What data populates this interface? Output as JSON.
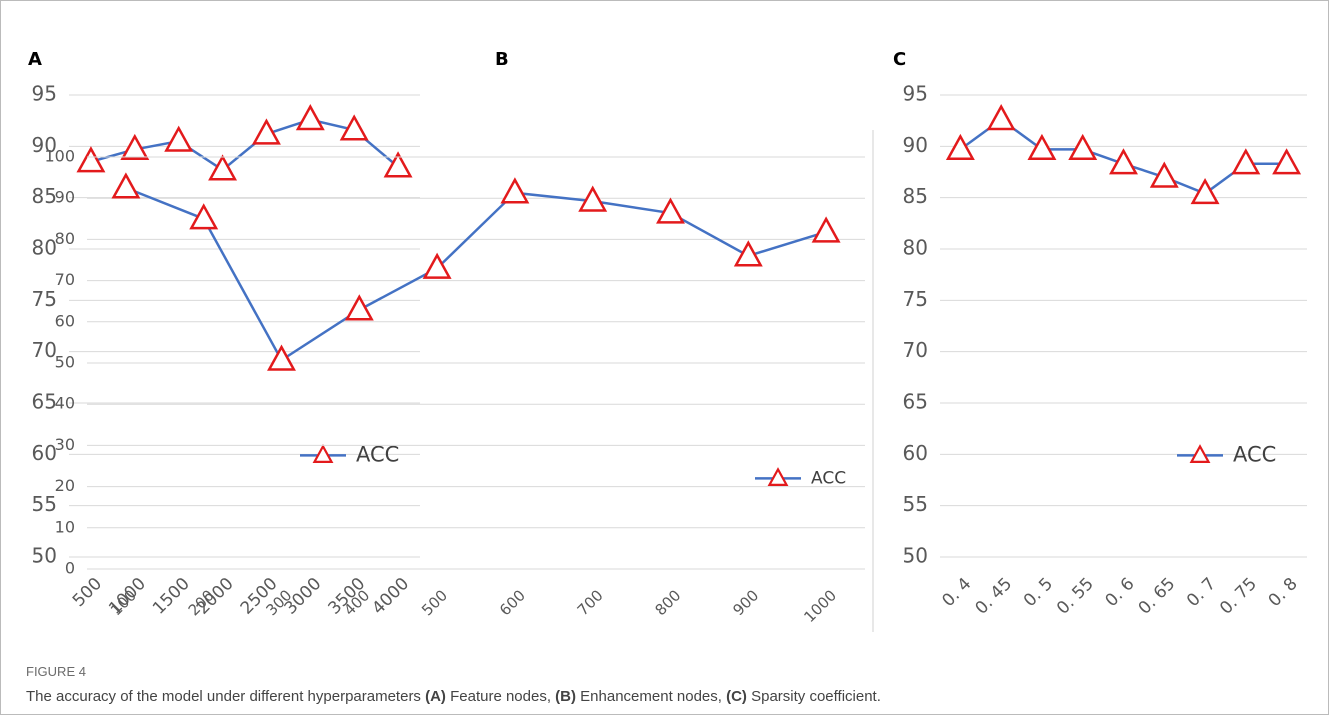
{
  "chart_data": [
    {
      "type": "line",
      "panel": "A",
      "categories": [
        "500",
        "1000",
        "1500",
        "2000",
        "2500",
        "3000",
        "3500",
        "4000"
      ],
      "series": [
        {
          "name": "ACC",
          "color": "#4472c4",
          "marker_color": "#e31a1c",
          "values": [
            88.5,
            89.7,
            90.5,
            87.7,
            91.2,
            92.6,
            91.6,
            88.0
          ]
        }
      ],
      "ylim": [
        50,
        95
      ],
      "yticks": [
        50,
        55,
        60,
        65,
        70,
        75,
        80,
        85,
        90,
        95
      ],
      "grid": true,
      "legend": "lower right"
    },
    {
      "type": "line",
      "panel": "B",
      "categories": [
        "100",
        "200",
        "300",
        "400",
        "500",
        "600",
        "700",
        "800",
        "900",
        "1000"
      ],
      "series": [
        {
          "name": "ACC",
          "color": "#4472c4",
          "marker_color": "#e31a1c",
          "values": [
            92.5,
            85.0,
            50.7,
            62.9,
            73.0,
            91.3,
            89.3,
            86.4,
            76.0,
            81.8
          ]
        }
      ],
      "ylim": [
        0,
        100
      ],
      "yticks": [
        0,
        10,
        20,
        30,
        40,
        50,
        60,
        70,
        80,
        90,
        100
      ],
      "grid": true,
      "legend": "lower right"
    },
    {
      "type": "line",
      "panel": "C",
      "categories": [
        "0. 4",
        "0. 45",
        "0. 5",
        "0. 55",
        "0. 6",
        "0. 65",
        "0. 7",
        "0. 75",
        "0. 8"
      ],
      "series": [
        {
          "name": "ACC",
          "color": "#4472c4",
          "marker_color": "#e31a1c",
          "values": [
            89.7,
            92.6,
            89.7,
            89.7,
            88.3,
            87.0,
            85.4,
            88.3,
            88.3
          ]
        }
      ],
      "ylim": [
        50,
        95
      ],
      "yticks": [
        50,
        55,
        60,
        65,
        70,
        75,
        80,
        85,
        90,
        95
      ],
      "grid": true,
      "legend": "lower right"
    }
  ],
  "figure": {
    "label": "FIGURE 4",
    "caption": [
      "The accuracy of the model under different hyperparameters ",
      "(A)",
      " Feature nodes, ",
      "(B)",
      " Enhancement nodes, ",
      "(C)",
      " Sparsity coefficient."
    ]
  }
}
